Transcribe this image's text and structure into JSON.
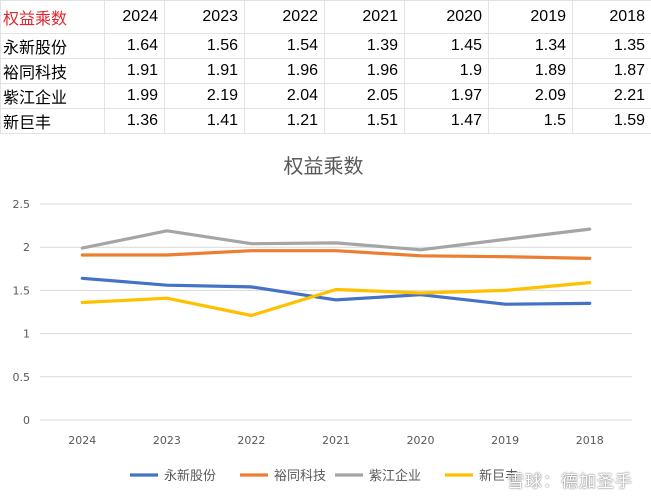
{
  "table": {
    "corner_label": "权益乘数",
    "years": [
      "2024",
      "2023",
      "2022",
      "2021",
      "2020",
      "2019",
      "2018"
    ],
    "rows": [
      {
        "name": "永新股份",
        "values": [
          "1.64",
          "1.56",
          "1.54",
          "1.39",
          "1.45",
          "1.34",
          "1.35"
        ]
      },
      {
        "name": "裕同科技",
        "values": [
          "1.91",
          "1.91",
          "1.96",
          "1.96",
          "1.9",
          "1.89",
          "1.87"
        ]
      },
      {
        "name": "紫江企业",
        "values": [
          "1.99",
          "2.19",
          "2.04",
          "2.05",
          "1.97",
          "2.09",
          "2.21"
        ]
      },
      {
        "name": "新巨丰",
        "values": [
          "1.36",
          "1.41",
          "1.21",
          "1.51",
          "1.47",
          "1.5",
          "1.59"
        ]
      }
    ]
  },
  "chart_data": {
    "type": "line",
    "title": "权益乘数",
    "categories": [
      "2024",
      "2023",
      "2022",
      "2021",
      "2020",
      "2019",
      "2018"
    ],
    "ylim": [
      0,
      2.5
    ],
    "yticks": [
      "0",
      "0.5",
      "1",
      "1.5",
      "2",
      "2.5"
    ],
    "grid": true,
    "legend": "bottom",
    "series": [
      {
        "name": "永新股份",
        "color": "#4472c4",
        "values": [
          1.64,
          1.56,
          1.54,
          1.39,
          1.45,
          1.34,
          1.35
        ]
      },
      {
        "name": "裕同科技",
        "color": "#ed7d31",
        "values": [
          1.91,
          1.91,
          1.96,
          1.96,
          1.9,
          1.89,
          1.87
        ]
      },
      {
        "name": "紫江企业",
        "color": "#a5a5a5",
        "values": [
          1.99,
          2.19,
          2.04,
          2.05,
          1.97,
          2.09,
          2.21
        ]
      },
      {
        "name": "新巨丰",
        "color": "#ffc000",
        "values": [
          1.36,
          1.41,
          1.21,
          1.51,
          1.47,
          1.5,
          1.59
        ]
      }
    ]
  },
  "watermark": "雪球：德加圣手"
}
